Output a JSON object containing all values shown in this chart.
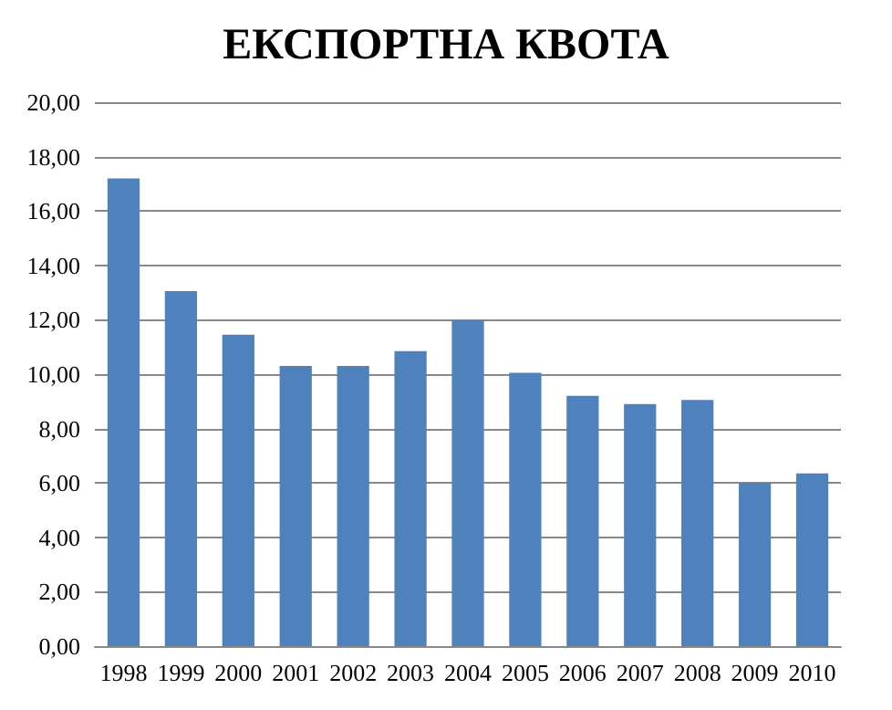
{
  "chart_data": {
    "type": "bar",
    "title": "ЕКСПОРТНА КВОТА",
    "categories": [
      "1998",
      "1999",
      "2000",
      "2001",
      "2002",
      "2003",
      "2004",
      "2005",
      "2006",
      "2007",
      "2008",
      "2009",
      "2010"
    ],
    "values": [
      17.2,
      13.05,
      11.45,
      10.3,
      10.3,
      10.85,
      12.0,
      10.05,
      9.2,
      8.9,
      9.05,
      6.0,
      6.35
    ],
    "color": "#4f81bd",
    "ylim": [
      0,
      20
    ],
    "yticks": [
      {
        "value": 0,
        "label": "0,00"
      },
      {
        "value": 2,
        "label": "2,00"
      },
      {
        "value": 4,
        "label": "4,00"
      },
      {
        "value": 6,
        "label": "6,00"
      },
      {
        "value": 8,
        "label": "8,00"
      },
      {
        "value": 10,
        "label": "10,00"
      },
      {
        "value": 12,
        "label": "12,00"
      },
      {
        "value": 14,
        "label": "14,00"
      },
      {
        "value": 16,
        "label": "16,00"
      },
      {
        "value": 18,
        "label": "18,00"
      },
      {
        "value": 20,
        "label": "20,00"
      }
    ],
    "grid": "y"
  }
}
